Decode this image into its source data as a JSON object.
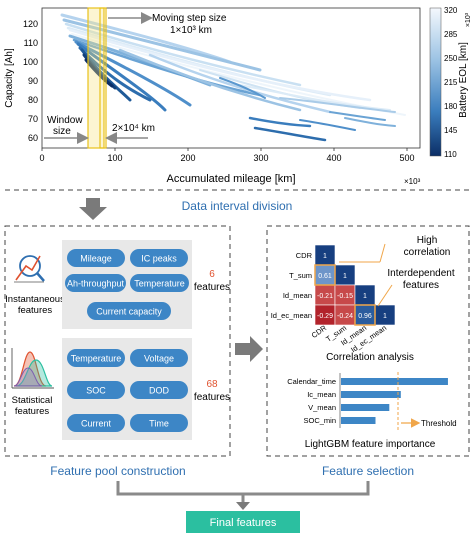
{
  "top_plot": {
    "ylabel": "Capacity [Ah]",
    "xlabel": "Accumulated mileage [km]",
    "x_exponent": "×10³",
    "x_ticks": [
      "0",
      "100",
      "200",
      "300",
      "400",
      "500"
    ],
    "y_ticks": [
      "60",
      "70",
      "80",
      "90",
      "100",
      "110",
      "120"
    ],
    "colorbar_label": "Battery EOL [km]",
    "colorbar_exponent": "×10³",
    "colorbar_ticks": [
      "320",
      "285",
      "250",
      "215",
      "180",
      "145",
      "110"
    ],
    "moving_step_label": "Moving step size",
    "moving_step_value": "1×10³ km",
    "window_label_line1": "Window",
    "window_label_line2": "size",
    "window_value": "2×10⁴ km"
  },
  "data_interval_title": "Data interval division",
  "feature_pool": {
    "title": "Feature pool construction",
    "instantaneous_label_1": "Instantaneous",
    "instantaneous_label_2": "features",
    "instantaneous_count": "6",
    "instantaneous_count_label": "features",
    "instantaneous_features": [
      "Mileage",
      "IC peaks",
      "Ah-throughput",
      "Temperature",
      "Current capacity"
    ],
    "statistical_label_1": "Statistical",
    "statistical_label_2": "features",
    "statistical_count": "68",
    "statistical_count_label": "features",
    "statistical_features": [
      "Temperature",
      "Voltage",
      "SOC",
      "DOD",
      "Current",
      "Time"
    ]
  },
  "feature_selection": {
    "title": "Feature selection",
    "high_corr_1": "High",
    "high_corr_2": "correlation",
    "interdep_1": "Interdependent",
    "interdep_2": "features",
    "matrix_labels": [
      "CDR",
      "T_sum",
      "Id_mean",
      "Id_ec_mean"
    ],
    "matrix_values": [
      [
        "1"
      ],
      [
        "0.61",
        "1"
      ],
      [
        "-0.21",
        "-0.15",
        "1"
      ],
      [
        "-0.29",
        "-0.24",
        "0.96",
        "1"
      ]
    ],
    "corr_analysis": "Correlation analysis",
    "importance_features": [
      "Calendar_time",
      "Ic_mean",
      "V_mean",
      "SOC_min"
    ],
    "importance_values": [
      0.93,
      0.52,
      0.42,
      0.3
    ],
    "threshold_label": "Threshold",
    "importance_title": "LightGBM feature importance"
  },
  "final_features": "Final features",
  "colors": {
    "accent_blue": "#2f6fb0",
    "pill_blue": "#3d86c6",
    "orange": "#f0a64a",
    "teal": "#2bbfa0",
    "count_red": "#e0522f"
  }
}
